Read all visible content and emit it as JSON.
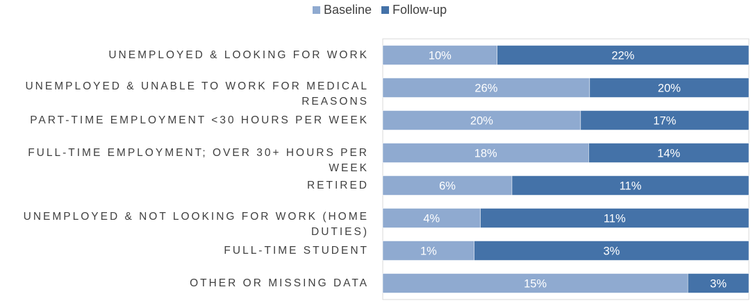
{
  "chart_data": {
    "type": "bar",
    "stacked": "100%",
    "orientation": "horizontal",
    "title": "",
    "xlabel": "",
    "ylabel": "",
    "legend": {
      "position": "top",
      "entries": [
        "Baseline",
        "Follow-up"
      ]
    },
    "categories": [
      "UNEMPLOYED & LOOKING FOR WORK",
      "UNEMPLOYED & UNABLE TO WORK FOR MEDICAL REASONS",
      "PART-TIME EMPLOYMENT <30 HOURS PER WEEK",
      "FULL-TIME EMPLOYMENT; OVER 30+ HOURS PER WEEK",
      "RETIRED",
      "UNEMPLOYED & NOT LOOKING FOR WORK (HOME DUTIES)",
      "FULL-TIME STUDENT",
      "OTHER OR MISSING DATA"
    ],
    "category_lines": [
      [
        "UNEMPLOYED & LOOKING FOR WORK"
      ],
      [
        "UNEMPLOYED & UNABLE TO WORK FOR MEDICAL",
        "REASONS"
      ],
      [
        "PART-TIME EMPLOYMENT <30 HOURS PER WEEK"
      ],
      [
        "FULL-TIME EMPLOYMENT; OVER 30+ HOURS PER WEEK"
      ],
      [
        "RETIRED"
      ],
      [
        "UNEMPLOYED & NOT LOOKING FOR WORK (HOME",
        "DUTIES)"
      ],
      [
        "FULL-TIME STUDENT"
      ],
      [
        "OTHER OR MISSING DATA"
      ]
    ],
    "series": [
      {
        "name": "Baseline",
        "color": "#8faad0",
        "values": [
          10,
          26,
          20,
          18,
          6,
          4,
          1,
          15
        ],
        "labels": [
          "10%",
          "26%",
          "20%",
          "18%",
          "6%",
          "4%",
          "1%",
          "15%"
        ]
      },
      {
        "name": "Follow-up",
        "color": "#4472a8",
        "values": [
          22,
          20,
          17,
          14,
          11,
          11,
          3,
          3
        ],
        "labels": [
          "22%",
          "20%",
          "17%",
          "14%",
          "11%",
          "11%",
          "3%",
          "3%"
        ]
      }
    ],
    "grid": false
  }
}
